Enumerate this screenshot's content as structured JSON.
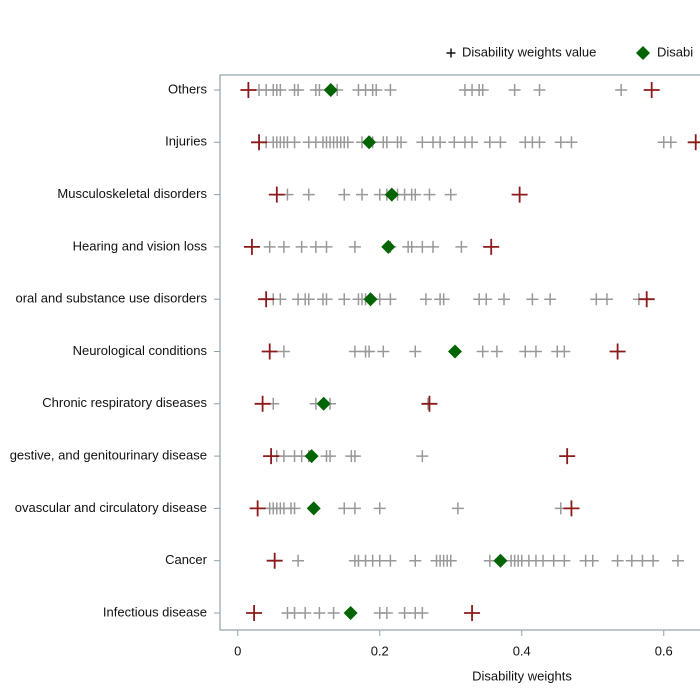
{
  "chart_data": {
    "type": "dotplot",
    "x_label": "Disability weights",
    "categories": [
      "Others",
      "Injuries",
      "Musculoskeletal disorders",
      "Hearing and vision loss",
      "oral and substance use disorders",
      "Neurological conditions",
      "Chronic respiratory diseases",
      "gestive, and genitourinary disease",
      "ovascular and circulatory disease",
      "Cancer",
      "Infectious disease"
    ],
    "xlim": [
      -0.025,
      0.66
    ],
    "xticks": [
      0,
      0.2,
      0.4,
      0.6
    ],
    "series": [
      {
        "name": "Disability weights value",
        "color": "#999999",
        "marker": "plus",
        "values": [
          [
            0.03,
            0.04,
            0.05,
            0.055,
            0.06,
            0.08,
            0.085,
            0.11,
            0.115,
            0.14,
            0.17,
            0.18,
            0.19,
            0.195,
            0.215,
            0.32,
            0.33,
            0.34,
            0.345,
            0.39,
            0.425,
            0.54
          ],
          [
            0.04,
            0.05,
            0.055,
            0.06,
            0.065,
            0.07,
            0.08,
            0.1,
            0.11,
            0.12,
            0.125,
            0.13,
            0.135,
            0.14,
            0.145,
            0.15,
            0.155,
            0.175,
            0.19,
            0.205,
            0.21,
            0.225,
            0.23,
            0.26,
            0.275,
            0.285,
            0.305,
            0.32,
            0.33,
            0.355,
            0.37,
            0.405,
            0.415,
            0.425,
            0.455,
            0.47,
            0.6,
            0.61
          ],
          [
            0.07,
            0.1,
            0.15,
            0.175,
            0.2,
            0.21,
            0.225,
            0.235,
            0.245,
            0.25,
            0.27,
            0.3
          ],
          [
            0.045,
            0.065,
            0.09,
            0.11,
            0.125,
            0.165,
            0.215,
            0.24,
            0.245,
            0.26,
            0.275,
            0.315
          ],
          [
            0.05,
            0.06,
            0.085,
            0.095,
            0.1,
            0.12,
            0.125,
            0.15,
            0.17,
            0.175,
            0.18,
            0.2,
            0.215,
            0.265,
            0.285,
            0.29,
            0.34,
            0.35,
            0.375,
            0.415,
            0.44,
            0.505,
            0.52,
            0.565
          ],
          [
            0.065,
            0.165,
            0.18,
            0.185,
            0.205,
            0.25,
            0.345,
            0.365,
            0.405,
            0.42,
            0.45,
            0.46
          ],
          [
            0.05,
            0.11,
            0.13,
            0.268
          ],
          [
            0.055,
            0.065,
            0.08,
            0.09,
            0.1,
            0.125,
            0.13,
            0.16,
            0.165,
            0.26
          ],
          [
            0.045,
            0.05,
            0.055,
            0.06,
            0.065,
            0.075,
            0.08,
            0.15,
            0.165,
            0.2,
            0.31,
            0.455
          ],
          [
            0.085,
            0.165,
            0.17,
            0.18,
            0.19,
            0.2,
            0.215,
            0.25,
            0.28,
            0.285,
            0.29,
            0.295,
            0.3,
            0.355,
            0.385,
            0.39,
            0.395,
            0.4,
            0.41,
            0.42,
            0.43,
            0.445,
            0.46,
            0.49,
            0.5,
            0.535,
            0.555,
            0.57,
            0.585,
            0.62
          ],
          [
            0.07,
            0.08,
            0.095,
            0.115,
            0.135,
            0.2,
            0.21,
            0.235,
            0.25,
            0.26
          ]
        ]
      },
      {
        "name": "Disabi",
        "color": "#006400",
        "marker": "diamond",
        "values": [
          0.131,
          0.185,
          0.217,
          0.212,
          0.187,
          0.306,
          0.121,
          0.104,
          0.107,
          0.37,
          0.159
        ]
      }
    ],
    "range_color": "#8b1a1a",
    "min": [
      0.015,
      0.03,
      0.055,
      0.02,
      0.04,
      0.045,
      0.035,
      0.047,
      0.028,
      0.052,
      0.023
    ],
    "max": [
      0.583,
      0.645,
      0.397,
      0.357,
      0.576,
      0.535,
      0.27,
      0.464,
      0.47,
      null,
      0.33
    ]
  }
}
